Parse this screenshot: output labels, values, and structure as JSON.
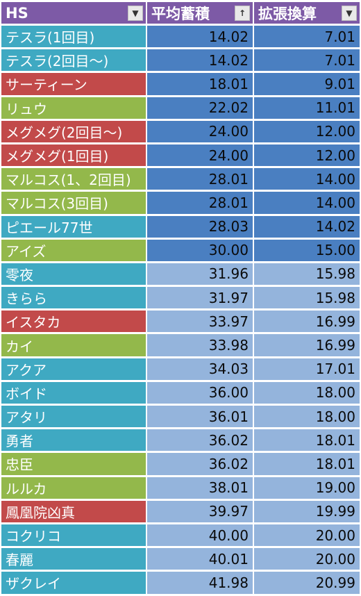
{
  "header": {
    "col_name": "HS",
    "col_avg": "平均蓄積",
    "col_ext": "拡張換算",
    "filter_icon": "▼",
    "sort_icon": "↑"
  },
  "colors": {
    "teal": "#3fa9c2",
    "red": "#c24a4a",
    "green": "#93b84b",
    "value_dark": "#4a7fc1",
    "value_light": "#94b4dc",
    "header": "#7d5aa6"
  },
  "rows": [
    {
      "name": "テスラ(1回目)",
      "avg": "14.02",
      "ext": "7.01",
      "color": "teal",
      "shade": "dark"
    },
    {
      "name": "テスラ(2回目～)",
      "avg": "14.02",
      "ext": "7.01",
      "color": "teal",
      "shade": "dark"
    },
    {
      "name": "サーティーン",
      "avg": "18.01",
      "ext": "9.01",
      "color": "red",
      "shade": "dark"
    },
    {
      "name": "リュウ",
      "avg": "22.02",
      "ext": "11.01",
      "color": "green",
      "shade": "dark"
    },
    {
      "name": "メグメグ(2回目～)",
      "avg": "24.00",
      "ext": "12.00",
      "color": "red",
      "shade": "dark"
    },
    {
      "name": "メグメグ(1回目)",
      "avg": "24.00",
      "ext": "12.00",
      "color": "red",
      "shade": "dark"
    },
    {
      "name": "マルコス(1、2回目)",
      "avg": "28.01",
      "ext": "14.00",
      "color": "green",
      "shade": "dark"
    },
    {
      "name": "マルコス(3回目)",
      "avg": "28.01",
      "ext": "14.00",
      "color": "green",
      "shade": "dark"
    },
    {
      "name": "ピエール77世",
      "avg": "28.03",
      "ext": "14.02",
      "color": "teal",
      "shade": "dark"
    },
    {
      "name": "アイズ",
      "avg": "30.00",
      "ext": "15.00",
      "color": "green",
      "shade": "dark"
    },
    {
      "name": "零夜",
      "avg": "31.96",
      "ext": "15.98",
      "color": "teal",
      "shade": "light"
    },
    {
      "name": "きらら",
      "avg": "31.97",
      "ext": "15.98",
      "color": "teal",
      "shade": "light"
    },
    {
      "name": "イスタカ",
      "avg": "33.97",
      "ext": "16.99",
      "color": "red",
      "shade": "light"
    },
    {
      "name": "カイ",
      "avg": "33.98",
      "ext": "16.99",
      "color": "green",
      "shade": "light"
    },
    {
      "name": "アクア",
      "avg": "34.03",
      "ext": "17.01",
      "color": "teal",
      "shade": "light"
    },
    {
      "name": "ボイド",
      "avg": "36.00",
      "ext": "18.00",
      "color": "teal",
      "shade": "light"
    },
    {
      "name": "アタリ",
      "avg": "36.01",
      "ext": "18.00",
      "color": "teal",
      "shade": "light"
    },
    {
      "name": "勇者",
      "avg": "36.02",
      "ext": "18.01",
      "color": "teal",
      "shade": "light"
    },
    {
      "name": "忠臣",
      "avg": "36.02",
      "ext": "18.01",
      "color": "green",
      "shade": "light"
    },
    {
      "name": "ルルカ",
      "avg": "38.01",
      "ext": "19.00",
      "color": "green",
      "shade": "light"
    },
    {
      "name": "鳳凰院凶真",
      "avg": "39.97",
      "ext": "19.99",
      "color": "red",
      "shade": "light"
    },
    {
      "name": "コクリコ",
      "avg": "40.00",
      "ext": "20.00",
      "color": "teal",
      "shade": "light"
    },
    {
      "name": "春麗",
      "avg": "40.01",
      "ext": "20.00",
      "color": "teal",
      "shade": "light"
    },
    {
      "name": "ザクレイ",
      "avg": "41.98",
      "ext": "20.99",
      "color": "teal",
      "shade": "light"
    }
  ]
}
